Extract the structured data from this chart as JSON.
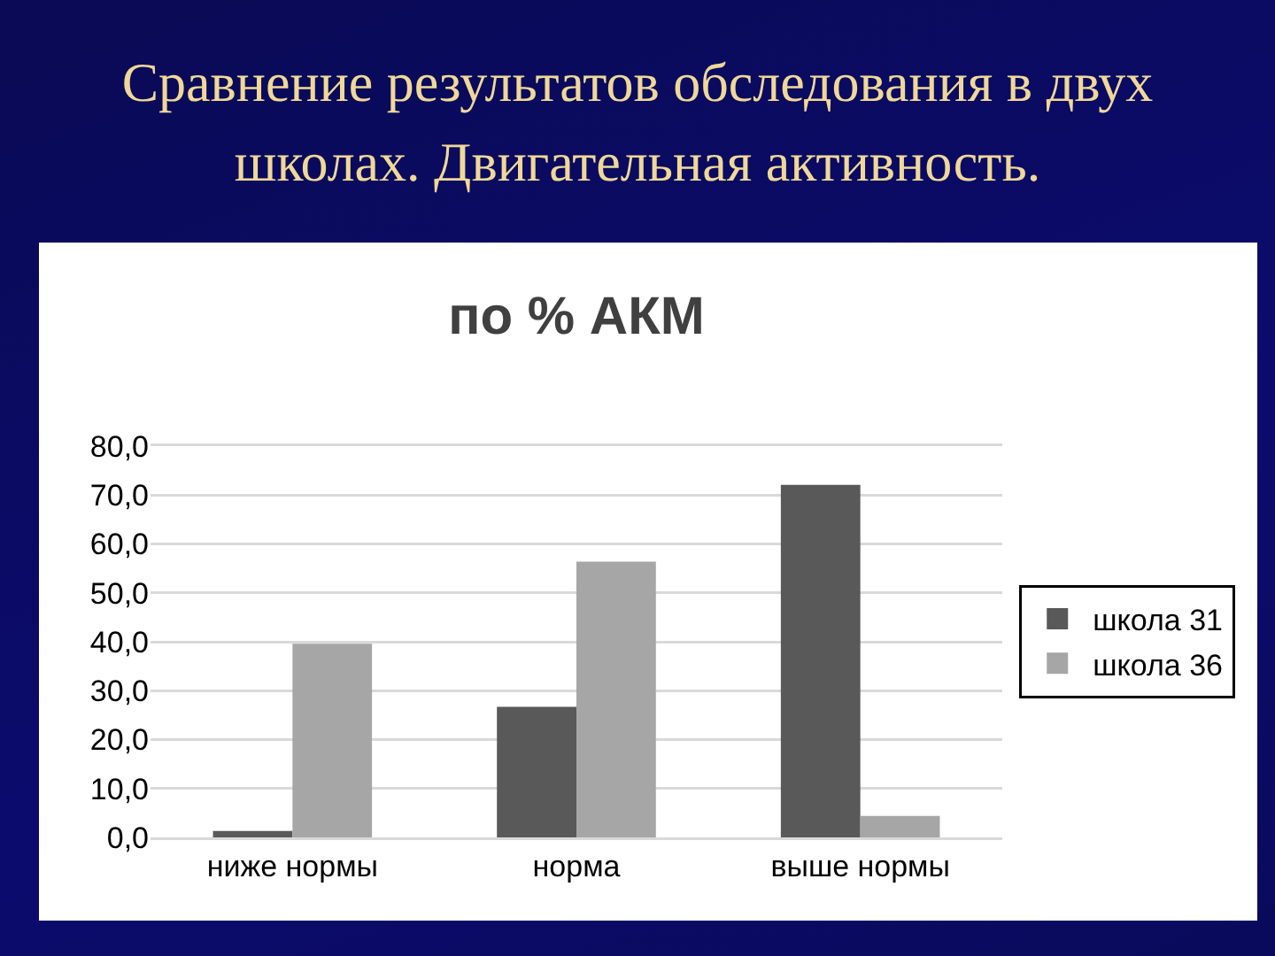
{
  "chart_data": {
    "type": "bar",
    "title": "Сравнение результатов обследования в двух школах. Двигательная активность.",
    "subtitle": "по % АКМ",
    "categories": [
      "ниже нормы",
      "норма",
      "выше нормы"
    ],
    "series": [
      {
        "name": "школа 31",
        "color": "#595959",
        "values": [
          1.3,
          26.7,
          72.1
        ]
      },
      {
        "name": "школа 36",
        "color": "#a6a6a6",
        "values": [
          39.6,
          56.4,
          4.4
        ]
      }
    ],
    "ylim": [
      0,
      80
    ],
    "yticks": [
      {
        "value": 0,
        "label": "0,0"
      },
      {
        "value": 10,
        "label": "10,0"
      },
      {
        "value": 20,
        "label": "20,0"
      },
      {
        "value": 30,
        "label": "30,0"
      },
      {
        "value": 40,
        "label": "40,0"
      },
      {
        "value": 50,
        "label": "50,0"
      },
      {
        "value": 60,
        "label": "60,0"
      },
      {
        "value": 70,
        "label": "70,0"
      },
      {
        "value": 80,
        "label": "80,0"
      }
    ],
    "grid": "y",
    "legend": "right"
  }
}
